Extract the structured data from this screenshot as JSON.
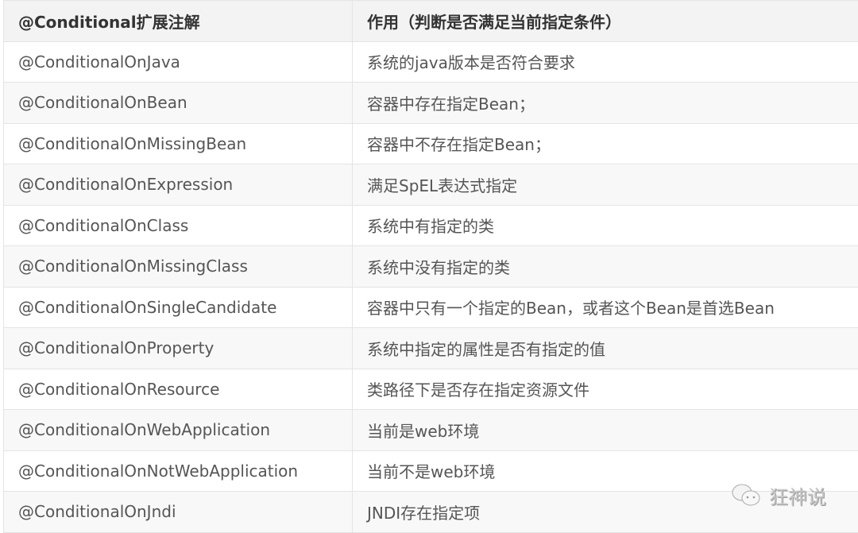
{
  "table": {
    "headers": [
      "@Conditional扩展注解",
      "作用（判断是否满足当前指定条件）"
    ],
    "rows": [
      [
        "@ConditionalOnJava",
        "系统的java版本是否符合要求"
      ],
      [
        "@ConditionalOnBean",
        "容器中存在指定Bean；"
      ],
      [
        "@ConditionalOnMissingBean",
        "容器中不存在指定Bean；"
      ],
      [
        "@ConditionalOnExpression",
        "满足SpEL表达式指定"
      ],
      [
        "@ConditionalOnClass",
        "系统中有指定的类"
      ],
      [
        "@ConditionalOnMissingClass",
        "系统中没有指定的类"
      ],
      [
        "@ConditionalOnSingleCandidate",
        "容器中只有一个指定的Bean，或者这个Bean是首选Bean"
      ],
      [
        "@ConditionalOnProperty",
        "系统中指定的属性是否有指定的值"
      ],
      [
        "@ConditionalOnResource",
        "类路径下是否存在指定资源文件"
      ],
      [
        "@ConditionalOnWebApplication",
        "当前是web环境"
      ],
      [
        "@ConditionalOnNotWebApplication",
        "当前不是web环境"
      ],
      [
        "@ConditionalOnJndi",
        "JNDI存在指定项"
      ]
    ]
  },
  "watermark": {
    "text": "狂神说",
    "icon": "wechat-icon"
  }
}
